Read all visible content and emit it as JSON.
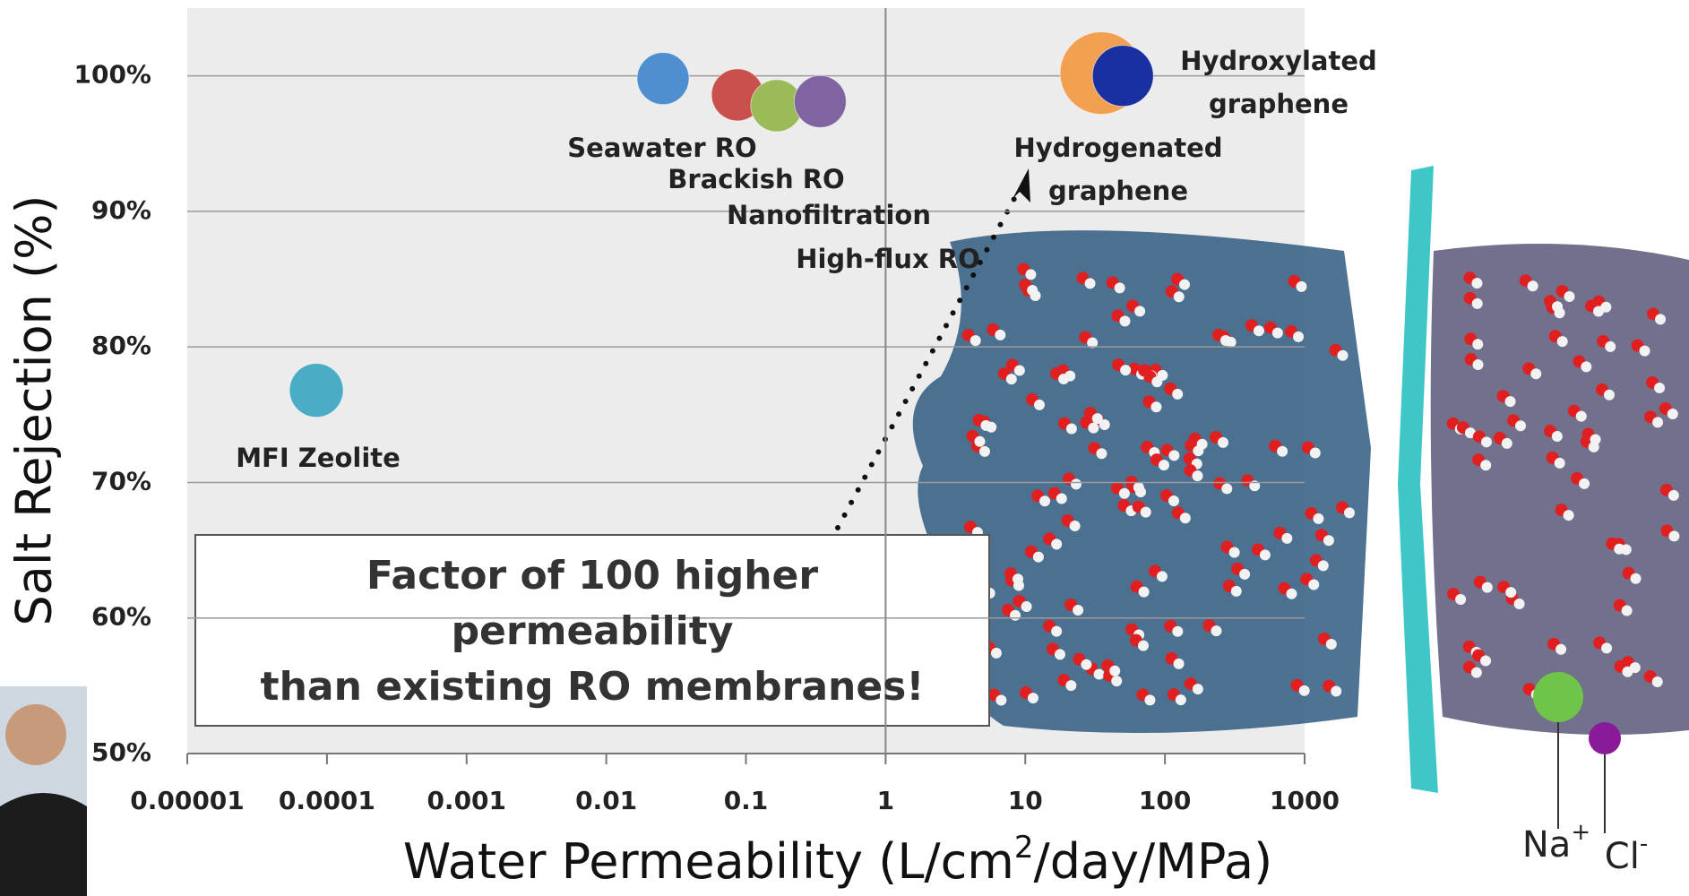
{
  "chart_data": {
    "type": "scatter",
    "ylabel": "Salt Rejection (%)",
    "xlabel_parts": [
      "Water Permeability (L/cm",
      "2",
      "/day/MPa)"
    ],
    "xscale": "log",
    "grid": true,
    "xlim": [
      1e-05,
      1000
    ],
    "xticks": [
      1e-05,
      0.0001,
      0.001,
      0.01,
      0.1,
      1,
      10,
      100,
      1000
    ],
    "ylim": [
      50,
      105
    ],
    "yticks": [
      {
        "value": 50,
        "label": "50%"
      },
      {
        "value": 60,
        "label": "60%"
      },
      {
        "value": 70,
        "label": "70%"
      },
      {
        "value": 80,
        "label": "80%"
      },
      {
        "value": 90,
        "label": "90%"
      },
      {
        "value": 100,
        "label": "100%"
      }
    ],
    "series": [
      {
        "name": "Seawater RO",
        "color": "#4f8fcf",
        "x": [
          0.0255
        ],
        "values": [
          99.8
        ]
      },
      {
        "name": "Brackish RO",
        "color": "#c9504c",
        "x": [
          0.087
        ],
        "values": [
          98.6
        ]
      },
      {
        "name": "Nanofiltration",
        "color": "#9bbb59",
        "x": [
          0.166
        ],
        "values": [
          97.8
        ]
      },
      {
        "name": "High-flux RO",
        "color": "#8064a2",
        "x": [
          0.34
        ],
        "values": [
          98.1
        ]
      },
      {
        "name": "MFI Zeolite",
        "color": "#4bacc6",
        "x": [
          8.4e-05
        ],
        "values": [
          76.8
        ]
      },
      {
        "name": "Hydrogenated graphene",
        "color": "#f0a050",
        "x": [
          35
        ],
        "values": [
          100.2
        ]
      },
      {
        "name": "Hydroxylated graphene",
        "color": "#1a2fa0",
        "x": [
          50
        ],
        "values": [
          100
        ]
      }
    ],
    "annotation_lines": [
      "Factor of 100 higher",
      "permeability",
      "than existing RO membranes!"
    ],
    "ion_labels": [
      {
        "base": "Na",
        "sup": "+"
      },
      {
        "base": "Cl",
        "sup": "-"
      }
    ]
  }
}
